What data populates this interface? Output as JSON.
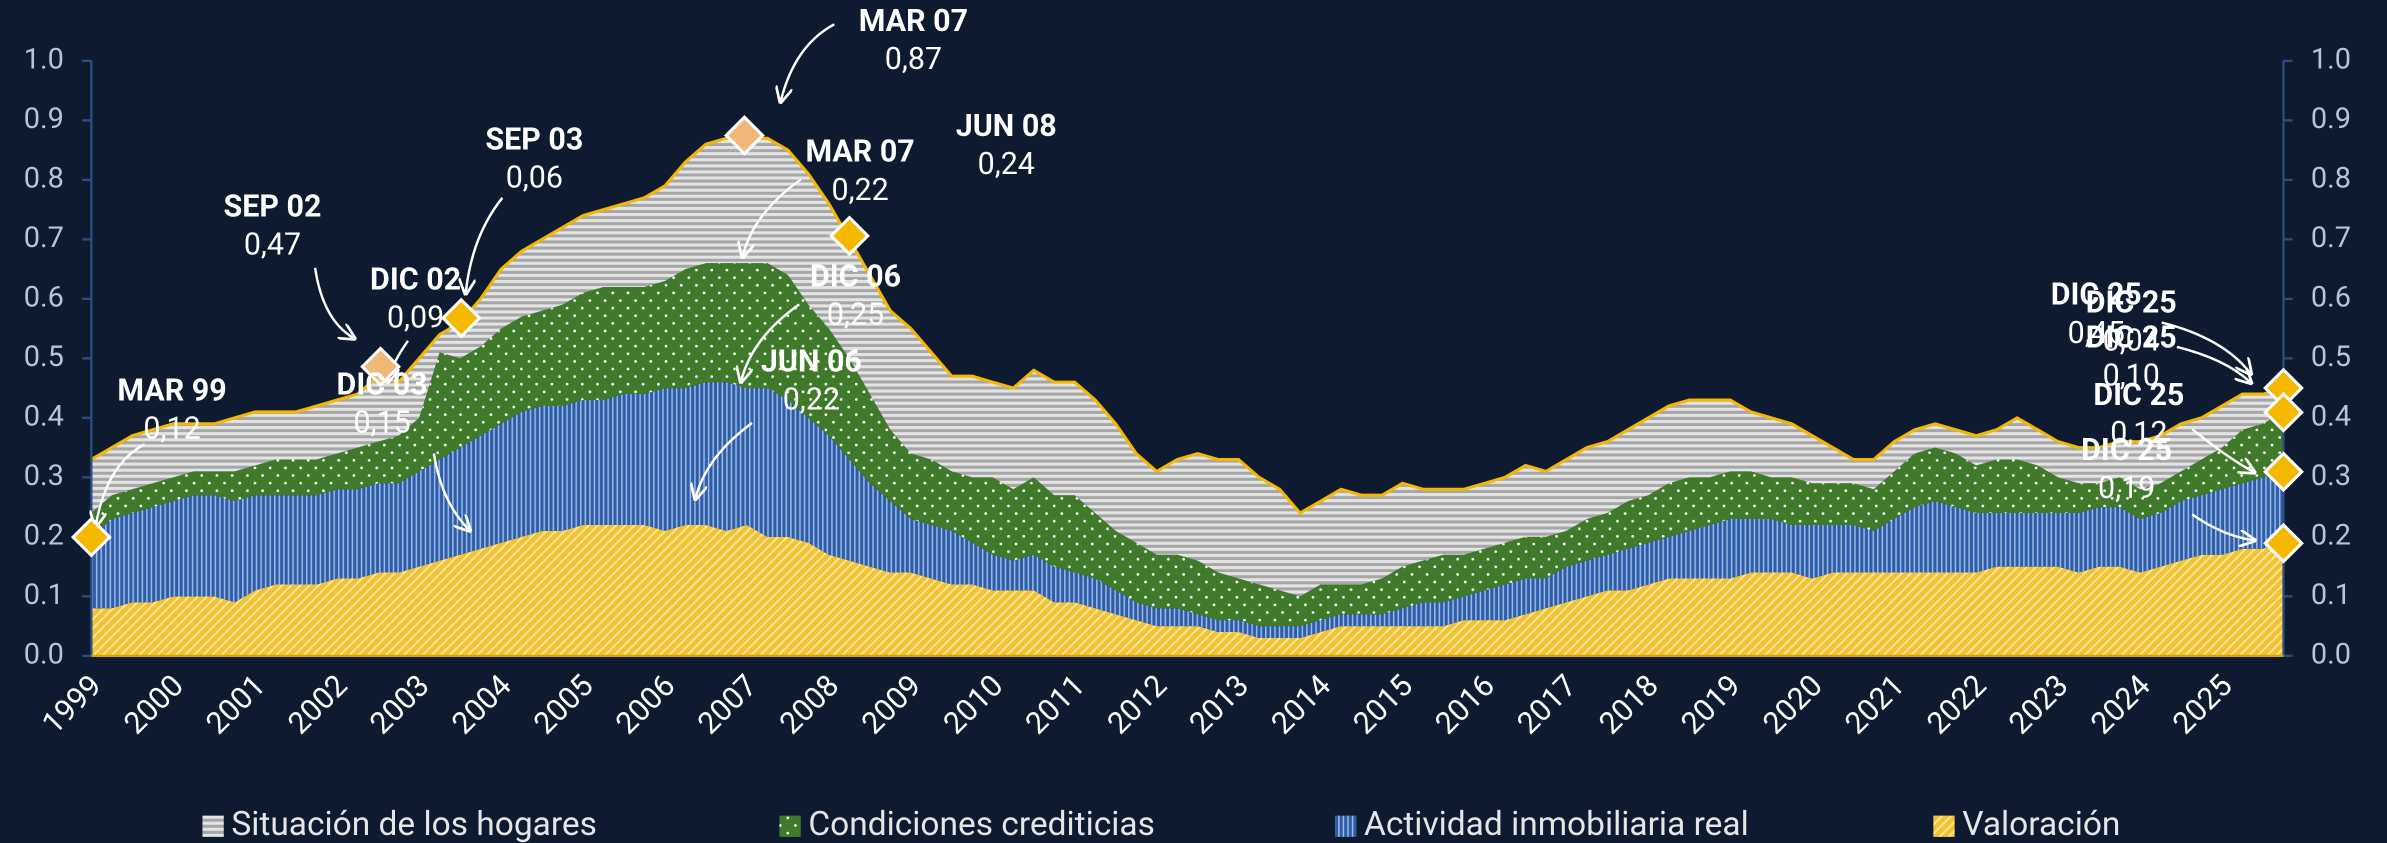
{
  "chart_data": {
    "type": "stacked-area",
    "categories": [
      "1999",
      null,
      null,
      null,
      "2000",
      null,
      null,
      null,
      "2001",
      null,
      null,
      null,
      "2002",
      null,
      null,
      null,
      "2003",
      null,
      null,
      null,
      "2004",
      null,
      null,
      null,
      "2005",
      null,
      null,
      null,
      "2006",
      null,
      null,
      null,
      "2007",
      null,
      null,
      null,
      "2008",
      null,
      null,
      null,
      "2009",
      null,
      null,
      null,
      "2010",
      null,
      null,
      null,
      "2011",
      null,
      null,
      null,
      "2012",
      null,
      null,
      null,
      "2013",
      null,
      null,
      null,
      "2014",
      null,
      null,
      null,
      "2015",
      null,
      null,
      null,
      "2016",
      null,
      null,
      null,
      "2017",
      null,
      null,
      null,
      "2018",
      null,
      null,
      null,
      "2019",
      null,
      null,
      null,
      "2020",
      null,
      null,
      null,
      "2021",
      null,
      null,
      null,
      "2022",
      null,
      null,
      null,
      "2023",
      null,
      null,
      null,
      "2024",
      null,
      null,
      null,
      "2025",
      null,
      null,
      null
    ],
    "series": [
      {
        "name": "Situación de los hogares",
        "color": "#a6a6a6",
        "pattern": "horizontal-stripes",
        "values": [
          0.09,
          0.08,
          0.09,
          0.09,
          0.09,
          0.08,
          0.08,
          0.09,
          0.09,
          0.08,
          0.08,
          0.09,
          0.09,
          0.09,
          0.11,
          0.09,
          0.1,
          0.03,
          0.06,
          0.08,
          0.1,
          0.11,
          0.12,
          0.13,
          0.13,
          0.13,
          0.14,
          0.15,
          0.16,
          0.18,
          0.2,
          0.21,
          0.21,
          0.21,
          0.21,
          0.22,
          0.21,
          0.2,
          0.2,
          0.2,
          0.21,
          0.18,
          0.16,
          0.17,
          0.16,
          0.17,
          0.18,
          0.19,
          0.19,
          0.19,
          0.18,
          0.15,
          0.14,
          0.16,
          0.18,
          0.19,
          0.2,
          0.18,
          0.17,
          0.14,
          0.14,
          0.16,
          0.15,
          0.14,
          0.14,
          0.12,
          0.11,
          0.11,
          0.11,
          0.11,
          0.12,
          0.11,
          0.12,
          0.12,
          0.12,
          0.12,
          0.13,
          0.13,
          0.13,
          0.13,
          0.12,
          0.1,
          0.1,
          0.09,
          0.08,
          0.06,
          0.04,
          0.05,
          0.05,
          0.04,
          0.04,
          0.04,
          0.05,
          0.05,
          0.07,
          0.06,
          0.06,
          0.06,
          0.06,
          0.06,
          0.08,
          0.08,
          0.08,
          0.07,
          0.07,
          0.06,
          0.05,
          0.04
        ]
      },
      {
        "name": "Condiciones crediticias",
        "color": "#3f7a2a",
        "pattern": "dots",
        "values": [
          0.04,
          0.04,
          0.04,
          0.04,
          0.04,
          0.04,
          0.04,
          0.05,
          0.05,
          0.06,
          0.06,
          0.06,
          0.06,
          0.07,
          0.07,
          0.08,
          0.09,
          0.18,
          0.15,
          0.15,
          0.16,
          0.16,
          0.16,
          0.17,
          0.18,
          0.19,
          0.18,
          0.18,
          0.18,
          0.2,
          0.2,
          0.2,
          0.21,
          0.21,
          0.21,
          0.19,
          0.18,
          0.17,
          0.15,
          0.12,
          0.11,
          0.11,
          0.1,
          0.11,
          0.13,
          0.12,
          0.13,
          0.12,
          0.13,
          0.11,
          0.1,
          0.1,
          0.09,
          0.09,
          0.09,
          0.08,
          0.07,
          0.07,
          0.06,
          0.05,
          0.06,
          0.05,
          0.05,
          0.06,
          0.07,
          0.07,
          0.08,
          0.07,
          0.07,
          0.07,
          0.07,
          0.07,
          0.06,
          0.07,
          0.07,
          0.08,
          0.08,
          0.09,
          0.09,
          0.08,
          0.08,
          0.08,
          0.07,
          0.08,
          0.07,
          0.07,
          0.07,
          0.07,
          0.08,
          0.09,
          0.09,
          0.09,
          0.08,
          0.09,
          0.09,
          0.08,
          0.06,
          0.05,
          0.04,
          0.05,
          0.05,
          0.05,
          0.05,
          0.06,
          0.07,
          0.09,
          0.09,
          0.1
        ]
      },
      {
        "name": "Actividad inmobiliaria real",
        "color": "#2e5da8",
        "pattern": "vertical-stripes",
        "values": [
          0.12,
          0.15,
          0.15,
          0.16,
          0.16,
          0.17,
          0.17,
          0.17,
          0.16,
          0.15,
          0.15,
          0.15,
          0.15,
          0.15,
          0.15,
          0.15,
          0.16,
          0.17,
          0.18,
          0.19,
          0.2,
          0.21,
          0.21,
          0.21,
          0.21,
          0.21,
          0.22,
          0.22,
          0.24,
          0.23,
          0.24,
          0.25,
          0.23,
          0.25,
          0.23,
          0.21,
          0.2,
          0.17,
          0.14,
          0.12,
          0.09,
          0.09,
          0.09,
          0.07,
          0.06,
          0.05,
          0.06,
          0.06,
          0.05,
          0.05,
          0.04,
          0.03,
          0.03,
          0.03,
          0.02,
          0.02,
          0.02,
          0.02,
          0.02,
          0.02,
          0.02,
          0.02,
          0.02,
          0.02,
          0.03,
          0.04,
          0.04,
          0.04,
          0.05,
          0.06,
          0.06,
          0.05,
          0.06,
          0.06,
          0.06,
          0.07,
          0.07,
          0.07,
          0.08,
          0.09,
          0.1,
          0.09,
          0.09,
          0.08,
          0.09,
          0.08,
          0.08,
          0.07,
          0.09,
          0.11,
          0.12,
          0.11,
          0.1,
          0.09,
          0.09,
          0.09,
          0.09,
          0.1,
          0.1,
          0.1,
          0.09,
          0.09,
          0.1,
          0.1,
          0.11,
          0.11,
          0.12,
          0.12
        ]
      },
      {
        "name": "Valoración",
        "color": "#f2c230",
        "pattern": "diagonal-stripes",
        "values": [
          0.08,
          0.08,
          0.09,
          0.09,
          0.1,
          0.1,
          0.1,
          0.09,
          0.11,
          0.12,
          0.12,
          0.12,
          0.13,
          0.13,
          0.14,
          0.14,
          0.15,
          0.16,
          0.17,
          0.18,
          0.19,
          0.2,
          0.21,
          0.21,
          0.22,
          0.22,
          0.22,
          0.22,
          0.21,
          0.22,
          0.22,
          0.21,
          0.22,
          0.2,
          0.2,
          0.19,
          0.17,
          0.16,
          0.15,
          0.14,
          0.14,
          0.13,
          0.12,
          0.12,
          0.11,
          0.11,
          0.11,
          0.09,
          0.09,
          0.08,
          0.07,
          0.06,
          0.05,
          0.05,
          0.05,
          0.04,
          0.04,
          0.03,
          0.03,
          0.03,
          0.04,
          0.05,
          0.05,
          0.05,
          0.05,
          0.05,
          0.05,
          0.06,
          0.06,
          0.06,
          0.07,
          0.08,
          0.09,
          0.1,
          0.11,
          0.11,
          0.12,
          0.13,
          0.13,
          0.13,
          0.13,
          0.14,
          0.14,
          0.14,
          0.13,
          0.14,
          0.14,
          0.14,
          0.14,
          0.14,
          0.14,
          0.14,
          0.14,
          0.15,
          0.15,
          0.15,
          0.15,
          0.14,
          0.15,
          0.15,
          0.14,
          0.15,
          0.16,
          0.17,
          0.17,
          0.18,
          0.18,
          0.19
        ]
      }
    ],
    "ylim": [
      0,
      1
    ],
    "yticks": [
      {
        "value": 0,
        "label": "0.0"
      },
      {
        "value": 0.1,
        "label": "0.1"
      },
      {
        "value": 0.2,
        "label": "0.2"
      },
      {
        "value": 0.3,
        "label": "0.3"
      },
      {
        "value": 0.4,
        "label": "0.4"
      },
      {
        "value": 0.5,
        "label": "0.5"
      },
      {
        "value": 0.6,
        "label": "0.6"
      },
      {
        "value": 0.7,
        "label": "0.7"
      },
      {
        "value": 0.8,
        "label": "0.8"
      },
      {
        "value": 0.9,
        "label": "0.9"
      },
      {
        "value": 1,
        "label": "1.0"
      }
    ],
    "y2lim": [
      0,
      1
    ],
    "y2ticks": [
      {
        "value": 0,
        "label": "0.0"
      },
      {
        "value": 0.1,
        "label": "0.1"
      },
      {
        "value": 0.2,
        "label": "0.2"
      },
      {
        "value": 0.3,
        "label": "0.3"
      },
      {
        "value": 0.4,
        "label": "0.4"
      },
      {
        "value": 0.5,
        "label": "0.5"
      },
      {
        "value": 0.6,
        "label": "0.6"
      },
      {
        "value": 0.7,
        "label": "0.7"
      },
      {
        "value": 0.8,
        "label": "0.8"
      },
      {
        "value": 0.9,
        "label": "0.9"
      },
      {
        "value": 1,
        "label": "1.0"
      }
    ],
    "legend": "bottom",
    "annotations": [
      {
        "date": "MAR 99",
        "value": 0.12,
        "value_label": "0,12"
      },
      {
        "date": "SEP 02",
        "value": 0.47,
        "value_label": "0,47"
      },
      {
        "date": "DIC 02",
        "value": 0.09,
        "value_label": "0,09"
      },
      {
        "date": "DIC 03",
        "value": 0.15,
        "value_label": "0,15"
      },
      {
        "date": "SEP 03",
        "value": 0.06,
        "value_label": "0,06"
      },
      {
        "date": "MAR 07",
        "value": 0.87,
        "value_label": "0,87"
      },
      {
        "date": "MAR 07",
        "value": 0.22,
        "value_label": "0,22"
      },
      {
        "date": "DIC 06",
        "value": 0.25,
        "value_label": "0,25"
      },
      {
        "date": "JUN 06",
        "value": 0.22,
        "value_label": "0,22"
      },
      {
        "date": "JUN 08",
        "value": 0.24,
        "value_label": "0,24"
      },
      {
        "date": "DIC 25",
        "value": 0.45,
        "value_label": "0,45"
      },
      {
        "date": "DIC 25",
        "value": 0.04,
        "value_label": "0,04"
      },
      {
        "date": "DIC 25",
        "value": 0.1,
        "value_label": "0,10"
      },
      {
        "date": "DIC 25",
        "value": 0.12,
        "value_label": "0,12"
      },
      {
        "date": "DIC 25",
        "value": 0.19,
        "value_label": "0,19"
      }
    ]
  }
}
